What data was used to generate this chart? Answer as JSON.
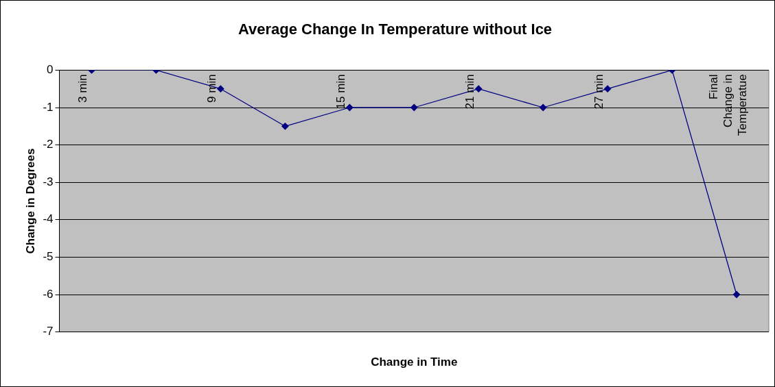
{
  "chart_data": {
    "type": "line",
    "title": "Average Change In Temperature without Ice",
    "xlabel": "Change in Time",
    "ylabel": "Change in Degrees",
    "categories": [
      "3 min",
      null,
      "9 min",
      null,
      "15 min",
      null,
      "21 min",
      null,
      "27 min",
      null,
      "Final Change in Temperatue"
    ],
    "series": [
      {
        "color": "#000080",
        "values": [
          0,
          0,
          -0.5,
          -1.5,
          -1,
          -1,
          -0.5,
          -1,
          -0.5,
          0,
          -6
        ]
      }
    ],
    "ylim": [
      -7,
      0
    ],
    "yticks": [
      -7,
      -6,
      -5,
      -4,
      -3,
      -2,
      -1,
      0
    ],
    "grid": "y",
    "legend": false,
    "marker": "diamond",
    "line_style": "solid"
  }
}
